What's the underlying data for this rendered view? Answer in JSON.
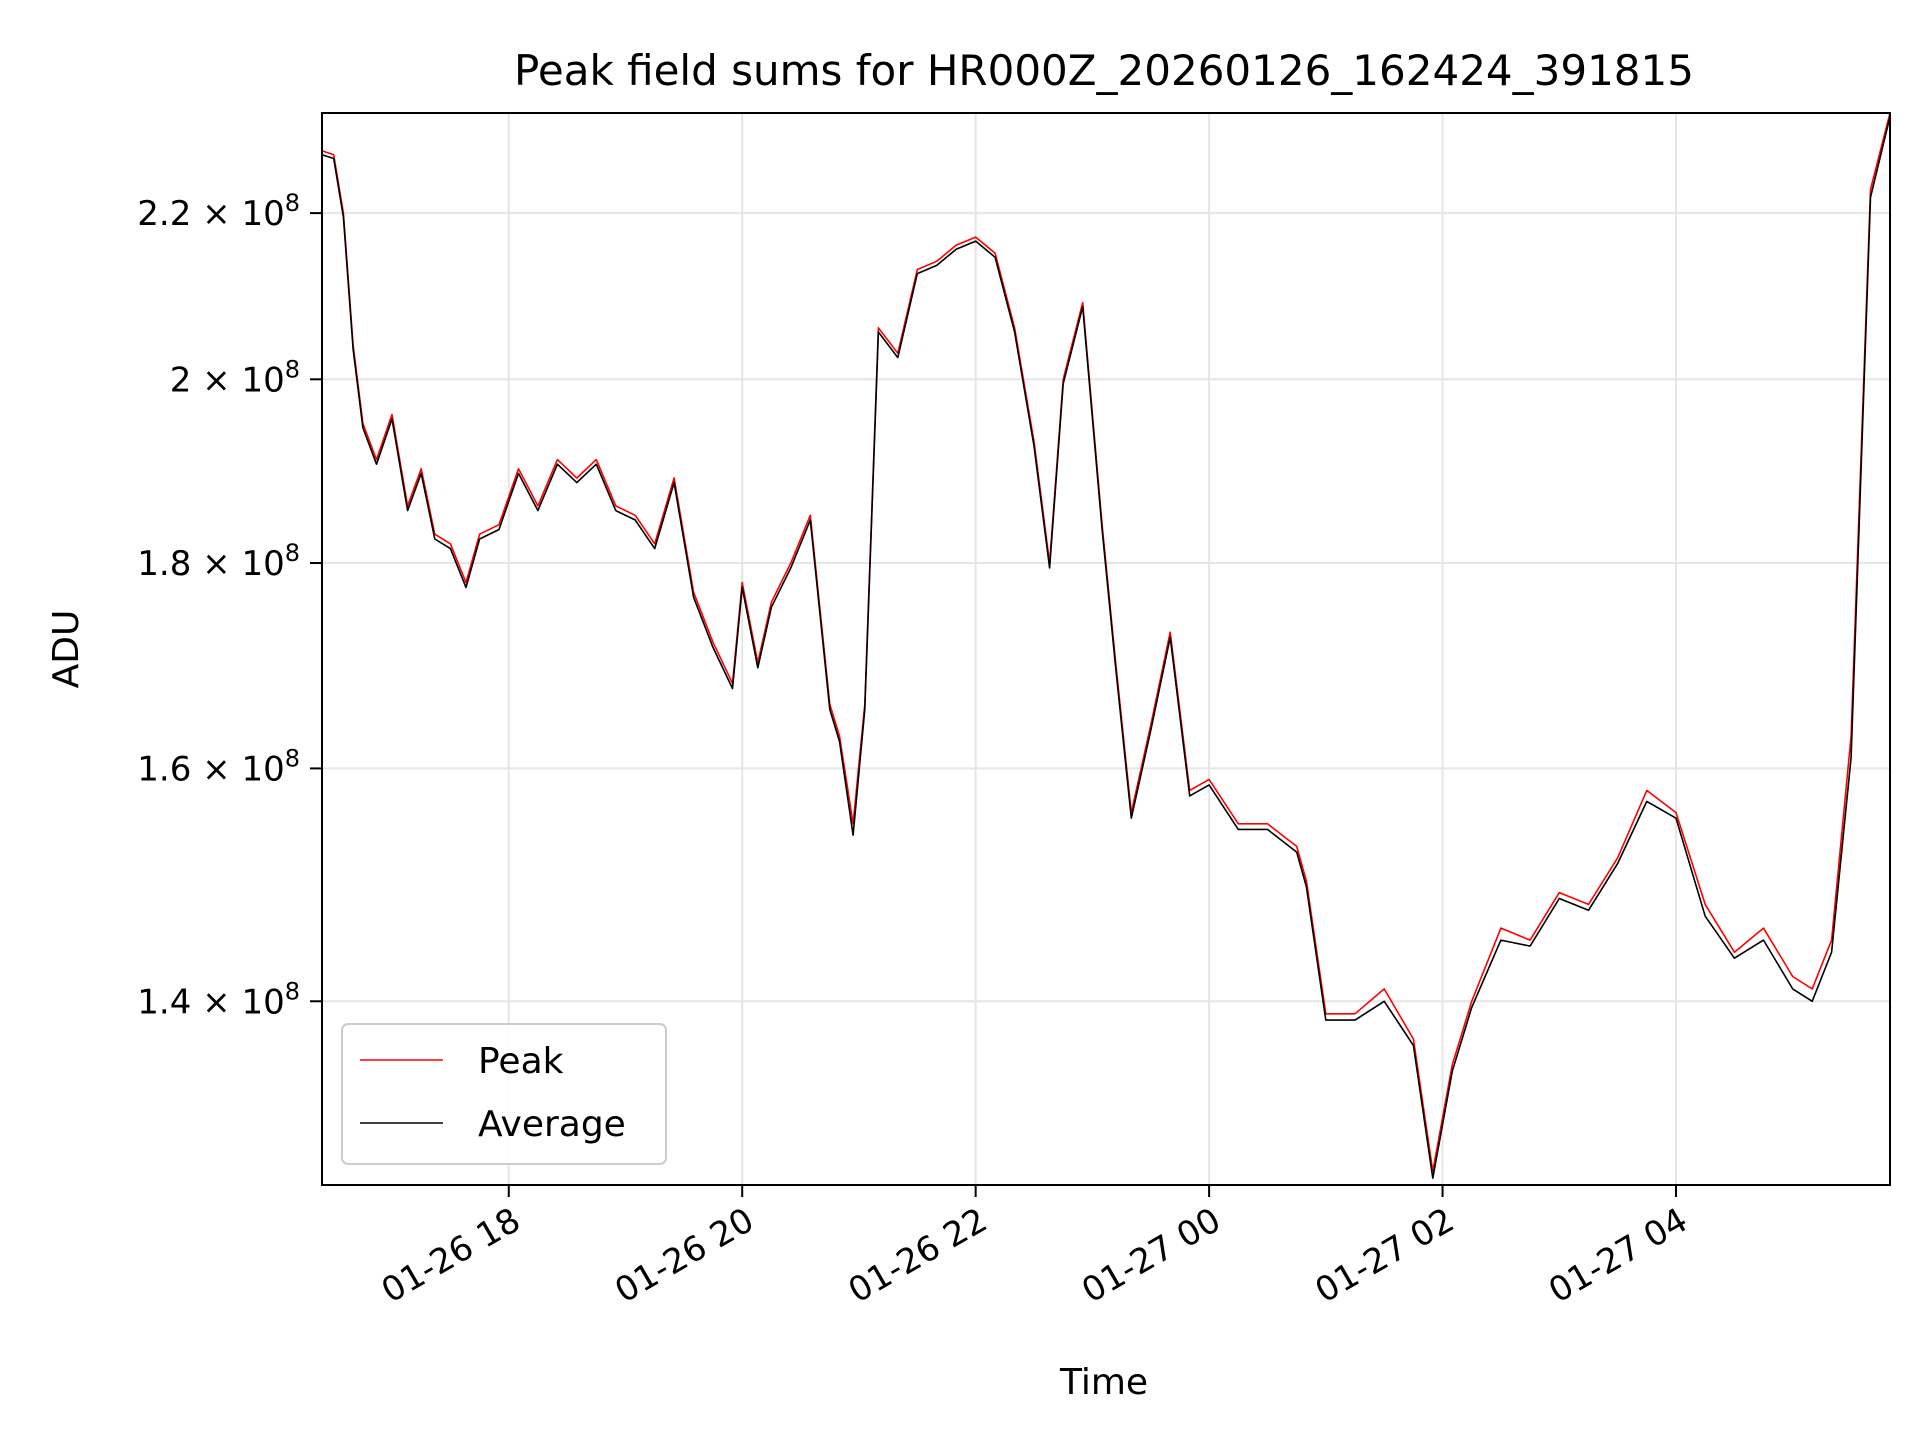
{
  "chart_data": {
    "type": "line",
    "title": "Peak field sums for HR000Z_20260126_162424_391815",
    "xlabel": "Time",
    "ylabel": "ADU",
    "y_scale": "log",
    "ylim": [
      126000000,
      233000000
    ],
    "xlim": [
      "2026-01-26T16:24:00",
      "2026-01-27T05:50:00"
    ],
    "grid": true,
    "legend_position": "lower-left",
    "x_ticks": [
      {
        "value": "2026-01-26T18:00:00",
        "label": "01-26 18"
      },
      {
        "value": "2026-01-26T20:00:00",
        "label": "01-26 20"
      },
      {
        "value": "2026-01-26T22:00:00",
        "label": "01-26 22"
      },
      {
        "value": "2026-01-27T00:00:00",
        "label": "01-27 00"
      },
      {
        "value": "2026-01-27T02:00:00",
        "label": "01-27 02"
      },
      {
        "value": "2026-01-27T04:00:00",
        "label": "01-27 04"
      }
    ],
    "y_ticks": [
      {
        "value": 140000000,
        "mantissa": "1.4",
        "base": "10",
        "exp": "8"
      },
      {
        "value": 160000000,
        "mantissa": "1.6",
        "base": "10",
        "exp": "8"
      },
      {
        "value": 180000000,
        "mantissa": "1.8",
        "base": "10",
        "exp": "8"
      },
      {
        "value": 200000000,
        "mantissa": "2",
        "base": "10",
        "exp": "8"
      },
      {
        "value": 220000000,
        "mantissa": "2.2",
        "base": "10",
        "exp": "8"
      }
    ],
    "series": [
      {
        "name": "Peak",
        "color": "#ff0000"
      },
      {
        "name": "Average",
        "color": "#000000"
      }
    ],
    "x": [
      "2026-01-26T16:24:00",
      "2026-01-26T16:30:00",
      "2026-01-26T16:35:00",
      "2026-01-26T16:40:00",
      "2026-01-26T16:45:00",
      "2026-01-26T16:52:00",
      "2026-01-26T17:00:00",
      "2026-01-26T17:08:00",
      "2026-01-26T17:15:00",
      "2026-01-26T17:22:00",
      "2026-01-26T17:30:00",
      "2026-01-26T17:38:00",
      "2026-01-26T17:45:00",
      "2026-01-26T17:55:00",
      "2026-01-26T18:05:00",
      "2026-01-26T18:15:00",
      "2026-01-26T18:25:00",
      "2026-01-26T18:35:00",
      "2026-01-26T18:45:00",
      "2026-01-26T18:55:00",
      "2026-01-26T19:05:00",
      "2026-01-26T19:15:00",
      "2026-01-26T19:25:00",
      "2026-01-26T19:35:00",
      "2026-01-26T19:45:00",
      "2026-01-26T19:55:00",
      "2026-01-26T20:00:00",
      "2026-01-26T20:08:00",
      "2026-01-26T20:15:00",
      "2026-01-26T20:25:00",
      "2026-01-26T20:35:00",
      "2026-01-26T20:45:00",
      "2026-01-26T20:50:00",
      "2026-01-26T20:57:00",
      "2026-01-26T21:03:00",
      "2026-01-26T21:10:00",
      "2026-01-26T21:20:00",
      "2026-01-26T21:30:00",
      "2026-01-26T21:40:00",
      "2026-01-26T21:50:00",
      "2026-01-26T22:00:00",
      "2026-01-26T22:10:00",
      "2026-01-26T22:20:00",
      "2026-01-26T22:30:00",
      "2026-01-26T22:38:00",
      "2026-01-26T22:45:00",
      "2026-01-26T22:55:00",
      "2026-01-26T23:05:00",
      "2026-01-26T23:12:00",
      "2026-01-26T23:20:00",
      "2026-01-26T23:30:00",
      "2026-01-26T23:40:00",
      "2026-01-26T23:50:00",
      "2026-01-27T00:00:00",
      "2026-01-27T00:15:00",
      "2026-01-27T00:30:00",
      "2026-01-27T00:45:00",
      "2026-01-27T00:50:00",
      "2026-01-27T01:00:00",
      "2026-01-27T01:15:00",
      "2026-01-27T01:30:00",
      "2026-01-27T01:45:00",
      "2026-01-27T01:55:00",
      "2026-01-27T02:05:00",
      "2026-01-27T02:15:00",
      "2026-01-27T02:30:00",
      "2026-01-27T02:45:00",
      "2026-01-27T03:00:00",
      "2026-01-27T03:15:00",
      "2026-01-27T03:30:00",
      "2026-01-27T03:45:00",
      "2026-01-27T04:00:00",
      "2026-01-27T04:15:00",
      "2026-01-27T04:30:00",
      "2026-01-27T04:45:00",
      "2026-01-27T05:00:00",
      "2026-01-27T05:10:00",
      "2026-01-27T05:20:00",
      "2026-01-27T05:30:00",
      "2026-01-27T05:40:00",
      "2026-01-27T05:50:00"
    ],
    "peak": [
      228000000,
      227500000,
      220000000,
      204000000,
      195000000,
      191000000,
      196000000,
      186000000,
      190000000,
      183000000,
      182000000,
      178000000,
      183000000,
      184000000,
      190000000,
      186000000,
      191000000,
      189000000,
      191000000,
      186000000,
      185000000,
      182000000,
      189000000,
      177000000,
      172000000,
      168000000,
      178000000,
      170000000,
      176000000,
      180000000,
      185000000,
      166000000,
      163000000,
      155000000,
      166000000,
      206000000,
      203000000,
      213000000,
      214000000,
      216000000,
      217000000,
      215000000,
      206000000,
      193000000,
      180000000,
      200000000,
      209000000,
      184000000,
      170000000,
      156000000,
      164000000,
      173000000,
      158000000,
      159000000,
      155000000,
      155000000,
      153000000,
      150000000,
      139000000,
      139000000,
      141000000,
      137000000,
      127000000,
      135000000,
      140000000,
      146000000,
      145000000,
      149000000,
      148000000,
      152000000,
      158000000,
      156000000,
      148000000,
      144000000,
      146000000,
      142000000,
      141000000,
      145000000,
      163000000,
      223000000,
      233000000
    ],
    "average": [
      227500000,
      227000000,
      219500000,
      203500000,
      194500000,
      190500000,
      195500000,
      185500000,
      189500000,
      182500000,
      181500000,
      177500000,
      182500000,
      183500000,
      189500000,
      185500000,
      190500000,
      188500000,
      190500000,
      185500000,
      184500000,
      181500000,
      188500000,
      176500000,
      171500000,
      167500000,
      177500000,
      169500000,
      175500000,
      179500000,
      184500000,
      165500000,
      162500000,
      154000000,
      165500000,
      205500000,
      202500000,
      212500000,
      213500000,
      215500000,
      216500000,
      214500000,
      205500000,
      192500000,
      179500000,
      199500000,
      208500000,
      183500000,
      169500000,
      155500000,
      163500000,
      172500000,
      157500000,
      158500000,
      154500000,
      154500000,
      152500000,
      149500000,
      138500000,
      138500000,
      140000000,
      136500000,
      126500000,
      134500000,
      139500000,
      145000000,
      144500000,
      148500000,
      147500000,
      151500000,
      157000000,
      155500000,
      147000000,
      143500000,
      145000000,
      141000000,
      140000000,
      144000000,
      161000000,
      222000000,
      232500000
    ]
  }
}
